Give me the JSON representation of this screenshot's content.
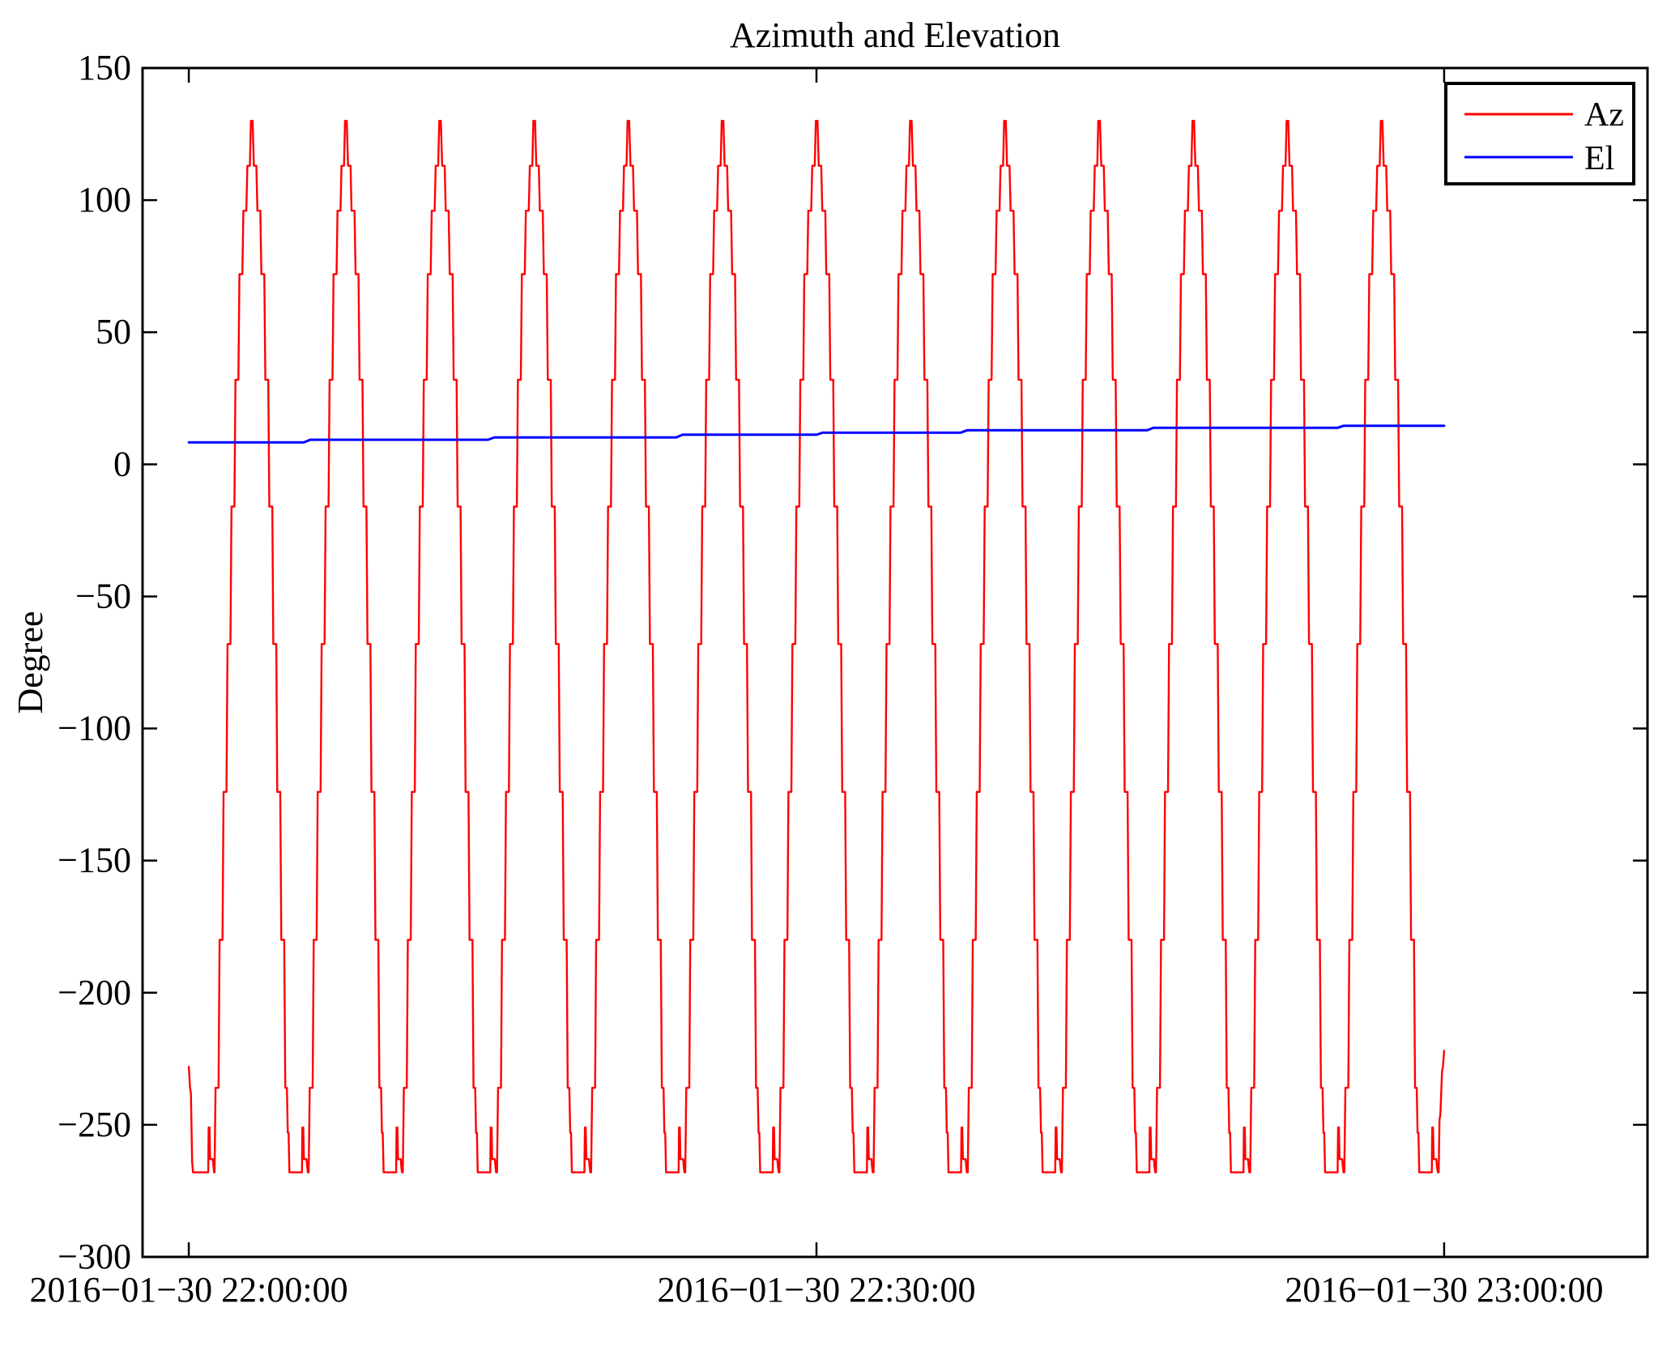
{
  "title": "Azimuth and Elevation",
  "ylabel": "Degree",
  "legend": {
    "items": [
      {
        "label": "Az",
        "color": "#ff0000"
      },
      {
        "label": "El",
        "color": "#0000ff"
      }
    ]
  },
  "colors": {
    "axis": "#000000",
    "background": "#ffffff",
    "az": "#ff0000",
    "el": "#0000ff"
  },
  "chart_data": {
    "type": "line",
    "title": "Azimuth and Elevation",
    "xlabel": "",
    "ylabel": "Degree",
    "x_unit": "minutes after 2016-01-30 22:00:00",
    "xlim_minutes": [
      -2.21,
      69.72
    ],
    "ylim": [
      -300,
      150
    ],
    "grid": false,
    "legend_position": "upper right",
    "y_ticks": [
      {
        "v": 150,
        "label": "150"
      },
      {
        "v": 100,
        "label": "100"
      },
      {
        "v": 50,
        "label": "50"
      },
      {
        "v": 0,
        "label": "0"
      },
      {
        "v": -50,
        "label": "−50"
      },
      {
        "v": -100,
        "label": "−100"
      },
      {
        "v": -150,
        "label": "−150"
      },
      {
        "v": -200,
        "label": "−200"
      },
      {
        "v": -250,
        "label": "−250"
      },
      {
        "v": -300,
        "label": "−300"
      }
    ],
    "x_ticks": [
      {
        "t": 0,
        "label": "2016−01−30 22:00:00"
      },
      {
        "t": 30,
        "label": "2016−01−30 22:30:00"
      },
      {
        "t": 60,
        "label": "2016−01−30 23:00:00"
      }
    ],
    "series": [
      {
        "name": "Az",
        "color": "#ff0000",
        "line_width": 2.4,
        "kind": "periodic",
        "pattern": {
          "peak_value": 130,
          "base_value": -268,
          "period_minutes": 4.5,
          "peak_times": [
            3.05,
            7.55,
            12.05,
            16.55,
            21.05,
            25.55,
            30.05,
            34.55,
            39.05,
            43.55,
            48.05,
            52.55,
            57.05
          ],
          "last_cycle_cutoff_dt": 1.76,
          "start_points": [
            [
              0.0,
              -228
            ],
            [
              0.06,
              -236
            ],
            [
              0.1,
              -238
            ],
            [
              0.16,
              -264
            ],
            [
              0.2,
              -268
            ],
            [
              0.93,
              -268
            ],
            [
              0.95,
              -251
            ],
            [
              0.99,
              -251
            ],
            [
              1.02,
              -263
            ],
            [
              1.15,
              -263
            ],
            [
              1.18,
              -266
            ],
            [
              1.21,
              -268
            ],
            [
              1.23,
              -268
            ]
          ],
          "cycle": [
            [
              -1.82,
              -268
            ],
            [
              -1.77,
              -236
            ],
            [
              -1.63,
              -236
            ],
            [
              -1.58,
              -180
            ],
            [
              -1.44,
              -180
            ],
            [
              -1.39,
              -124
            ],
            [
              -1.25,
              -124
            ],
            [
              -1.2,
              -68
            ],
            [
              -1.06,
              -68
            ],
            [
              -1.01,
              -16
            ],
            [
              -0.87,
              -16
            ],
            [
              -0.82,
              32
            ],
            [
              -0.68,
              32
            ],
            [
              -0.63,
              72
            ],
            [
              -0.49,
              72
            ],
            [
              -0.44,
              96
            ],
            [
              -0.3,
              96
            ],
            [
              -0.25,
              113
            ],
            [
              -0.13,
              113
            ],
            [
              -0.08,
              130
            ],
            [
              0.0,
              130
            ],
            [
              0.06,
              113
            ],
            [
              0.18,
              113
            ],
            [
              0.23,
              96
            ],
            [
              0.37,
              96
            ],
            [
              0.42,
              72
            ],
            [
              0.56,
              72
            ],
            [
              0.61,
              32
            ],
            [
              0.75,
              32
            ],
            [
              0.8,
              -16
            ],
            [
              0.94,
              -16
            ],
            [
              0.99,
              -68
            ],
            [
              1.13,
              -68
            ],
            [
              1.18,
              -124
            ],
            [
              1.32,
              -124
            ],
            [
              1.37,
              -180
            ],
            [
              1.51,
              -180
            ],
            [
              1.56,
              -236
            ],
            [
              1.64,
              -236
            ],
            [
              1.68,
              -253
            ],
            [
              1.72,
              -253
            ],
            [
              1.76,
              -268
            ],
            [
              2.36,
              -268
            ],
            [
              2.38,
              -251
            ],
            [
              2.42,
              -251
            ],
            [
              2.45,
              -263
            ],
            [
              2.58,
              -263
            ],
            [
              2.61,
              -266
            ],
            [
              2.64,
              -268
            ],
            [
              2.68,
              -268
            ]
          ],
          "end_points": [
            [
              58.81,
              -268
            ],
            [
              59.41,
              -268
            ],
            [
              59.43,
              -251
            ],
            [
              59.47,
              -251
            ],
            [
              59.5,
              -263
            ],
            [
              59.63,
              -263
            ],
            [
              59.66,
              -266
            ],
            [
              59.7,
              -268
            ],
            [
              59.74,
              -268
            ],
            [
              59.78,
              -248
            ],
            [
              59.82,
              -246
            ],
            [
              59.9,
              -230
            ],
            [
              59.94,
              -228
            ],
            [
              60.0,
              -222
            ]
          ]
        }
      },
      {
        "name": "El",
        "color": "#0000ff",
        "line_width": 3,
        "kind": "points",
        "points": [
          [
            0.0,
            8.3
          ],
          [
            5.5,
            8.3
          ],
          [
            5.8,
            9.3
          ],
          [
            14.3,
            9.3
          ],
          [
            14.6,
            10.2
          ],
          [
            23.3,
            10.2
          ],
          [
            23.6,
            11.2
          ],
          [
            30.0,
            11.2
          ],
          [
            30.3,
            12.0
          ],
          [
            36.9,
            12.0
          ],
          [
            37.2,
            12.9
          ],
          [
            45.8,
            12.9
          ],
          [
            46.1,
            13.8
          ],
          [
            54.9,
            13.8
          ],
          [
            55.2,
            14.6
          ],
          [
            60.0,
            14.6
          ]
        ]
      }
    ]
  }
}
